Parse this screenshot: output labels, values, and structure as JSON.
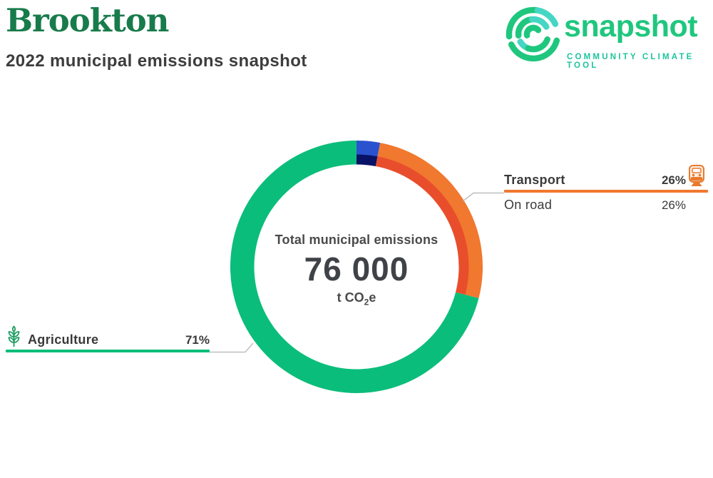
{
  "header": {
    "title": "Brookton",
    "subtitle": "2022 municipal emissions snapshot",
    "title_color": "#187B4B"
  },
  "logo": {
    "name": "snapshot",
    "tagline": "COMMUNITY CLIMATE TOOL",
    "green": "#1FC77E",
    "teal": "#45D6C4",
    "tagline_color": "#1EC49E"
  },
  "center": {
    "label": "Total municipal emissions",
    "value": "76 000",
    "unit_prefix": "t CO",
    "unit_sub": "2",
    "unit_suffix": "e"
  },
  "callouts": {
    "transport": {
      "label": "Transport",
      "percent": "26%",
      "color": "#F1782F",
      "icon": "train-icon",
      "rows": [
        {
          "label": "On road",
          "value": "26%"
        }
      ]
    },
    "agriculture": {
      "label": "Agriculture",
      "percent": "71%",
      "color": "#0BBD7B",
      "icon": "wheat-icon"
    }
  },
  "chart_data": {
    "type": "pie",
    "subtype": "two-level-donut",
    "title": "Total municipal emissions",
    "total_value": 76000,
    "total_value_label": "76 000",
    "unit": "t CO2e",
    "start_angle_deg": 0,
    "direction": "clockwise",
    "segments": [
      {
        "label": "",
        "percent": 3,
        "outer_color": "#2A52CE",
        "inner_color": "#081266"
      },
      {
        "label": "Transport",
        "percent": 26,
        "outer_color": "#F1782F",
        "inner_color": "#E84E2B",
        "subsectors": [
          {
            "label": "On road",
            "percent": 26
          }
        ]
      },
      {
        "label": "Agriculture",
        "percent": 71,
        "outer_color": "#0BBD7B",
        "inner_color": "#0BBD7B"
      }
    ],
    "legend_position": "callouts",
    "connector_color": "#B3B3B3"
  }
}
